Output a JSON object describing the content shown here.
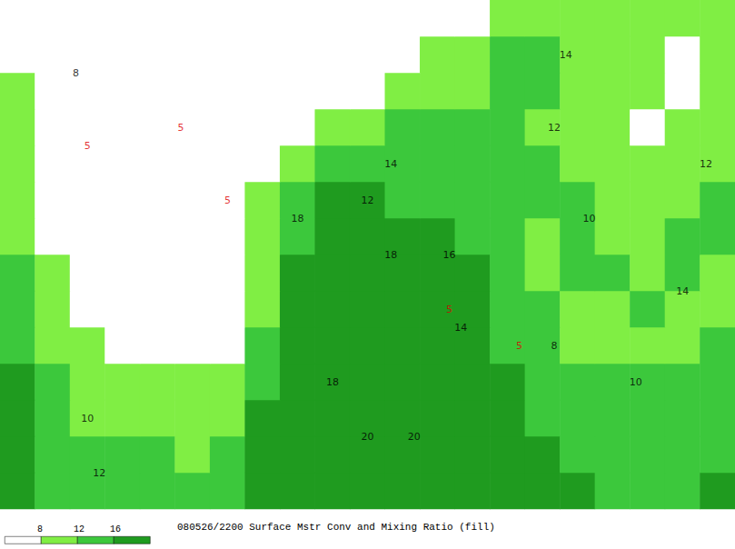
{
  "chart_data": {
    "type": "heatmap",
    "title": "080526/2200 Surface Mstr Conv and Mixing Ratio (fill)",
    "tick_labels": false,
    "x": [
      -125,
      -122,
      -119,
      -116,
      -113,
      -110,
      -107,
      -104,
      -101,
      -98,
      -95,
      -92,
      -89,
      -86,
      -83,
      -80,
      -77,
      -74,
      -71,
      -68,
      -65
    ],
    "y": [
      24,
      26,
      28,
      30,
      32,
      34,
      36,
      38,
      40,
      42,
      44,
      46,
      48,
      50
    ],
    "cells": [
      [
        18,
        15,
        13,
        13,
        13,
        12,
        13,
        18,
        21,
        21,
        21,
        20,
        20,
        20,
        19,
        17,
        16,
        15,
        15,
        15,
        16
      ],
      [
        17,
        14,
        12,
        12,
        12,
        11,
        12,
        17,
        21,
        21,
        20,
        20,
        20,
        19,
        18,
        16,
        15,
        14,
        14,
        14,
        15
      ],
      [
        16,
        13,
        10,
        10,
        10,
        10,
        11,
        16,
        20,
        20,
        20,
        20,
        19,
        18,
        17,
        15,
        14,
        13,
        13,
        13,
        14
      ],
      [
        16,
        12,
        9,
        8,
        8,
        8,
        9,
        14,
        19,
        20,
        20,
        19,
        19,
        18,
        16,
        14,
        13,
        12,
        12,
        12,
        13
      ],
      [
        15,
        11,
        8,
        7,
        7,
        7,
        7,
        12,
        18,
        19,
        19,
        19,
        18,
        17,
        15,
        13,
        11,
        10,
        10,
        11,
        12
      ],
      [
        14,
        10,
        7,
        6,
        6,
        6,
        6,
        10,
        17,
        18,
        19,
        18,
        18,
        16,
        14,
        12,
        10,
        11,
        12,
        11,
        11
      ],
      [
        13,
        8,
        6,
        6,
        6,
        5,
        6,
        10,
        16,
        18,
        18,
        17,
        18,
        16,
        12,
        10,
        13,
        12,
        11,
        13,
        11
      ],
      [
        11,
        7,
        5,
        5,
        5,
        5,
        6,
        9,
        15,
        17,
        18,
        17,
        17,
        15,
        13,
        11,
        12,
        10,
        9,
        14,
        12
      ],
      [
        10,
        7,
        5,
        5,
        5,
        5,
        6,
        8,
        13,
        16,
        17,
        15,
        14,
        15,
        14,
        12,
        12,
        11,
        9,
        11,
        12
      ],
      [
        9,
        6,
        5,
        4,
        5,
        5,
        5,
        6,
        9,
        12,
        14,
        14,
        13,
        13,
        12,
        12,
        11,
        10,
        8,
        10,
        11
      ],
      [
        9,
        6,
        5,
        4,
        5,
        6,
        5,
        6,
        7,
        9,
        11,
        12,
        12,
        13,
        12,
        11,
        10,
        9,
        7,
        9,
        10
      ],
      [
        8,
        7,
        5,
        5,
        4,
        5,
        6,
        5,
        5,
        6,
        7,
        8,
        10,
        11,
        12,
        12,
        10,
        9,
        8,
        7,
        9
      ],
      [
        7,
        6,
        5,
        5,
        4,
        4,
        4,
        4,
        5,
        5,
        5,
        6,
        8,
        9,
        12,
        12,
        9,
        9,
        8,
        7,
        8
      ],
      [
        6,
        7,
        6,
        5,
        5,
        4,
        4,
        4,
        4,
        4,
        4,
        5,
        6,
        7,
        8,
        9,
        10,
        9,
        8,
        9,
        10
      ]
    ],
    "colors": [
      "#ffffff",
      "#80ee44",
      "#3cc83c",
      "#1f9b1f"
    ],
    "colorbar_ticks": [
      8,
      12,
      16
    ],
    "annotations": [
      {
        "text": "14",
        "lon": -93,
        "lat": 42,
        "color": "#000000"
      },
      {
        "text": "12",
        "lon": -95,
        "lat": 40,
        "color": "#000000"
      },
      {
        "text": "18",
        "lon": -101,
        "lat": 39,
        "color": "#000000"
      },
      {
        "text": "18",
        "lon": -93,
        "lat": 37,
        "color": "#000000"
      },
      {
        "text": "16",
        "lon": -88,
        "lat": 37,
        "color": "#000000"
      },
      {
        "text": "18",
        "lon": -98,
        "lat": 30,
        "color": "#000000"
      },
      {
        "text": "20",
        "lon": -95,
        "lat": 27,
        "color": "#000000"
      },
      {
        "text": "20",
        "lon": -91,
        "lat": 27,
        "color": "#000000"
      },
      {
        "text": "14",
        "lon": -87,
        "lat": 33,
        "color": "#000000"
      },
      {
        "text": "12",
        "lon": -79,
        "lat": 44,
        "color": "#000000"
      },
      {
        "text": "14",
        "lon": -78,
        "lat": 48,
        "color": "#000000"
      },
      {
        "text": "10",
        "lon": -76,
        "lat": 39,
        "color": "#000000"
      },
      {
        "text": "8",
        "lon": -120,
        "lat": 47,
        "color": "#000000"
      },
      {
        "text": "10",
        "lon": -119,
        "lat": 28,
        "color": "#000000"
      },
      {
        "text": "12",
        "lon": -118,
        "lat": 25,
        "color": "#000000"
      },
      {
        "text": "14",
        "lon": -68,
        "lat": 35,
        "color": "#000000"
      },
      {
        "text": "10",
        "lon": -72,
        "lat": 30,
        "color": "#000000"
      },
      {
        "text": "12",
        "lon": -66,
        "lat": 42,
        "color": "#000000"
      },
      {
        "text": "8",
        "lon": -79,
        "lat": 32,
        "color": "#000000"
      },
      {
        "text": "5",
        "lon": -119,
        "lat": 43,
        "color": "#dd0000"
      },
      {
        "text": "5",
        "lon": -111,
        "lat": 44,
        "color": "#dd0000"
      },
      {
        "text": "5",
        "lon": -107,
        "lat": 40,
        "color": "#dd0000"
      },
      {
        "text": "5",
        "lon": -88,
        "lat": 34,
        "color": "#dd0000"
      },
      {
        "text": "5",
        "lon": -82,
        "lat": 32,
        "color": "#dd0000"
      }
    ]
  }
}
